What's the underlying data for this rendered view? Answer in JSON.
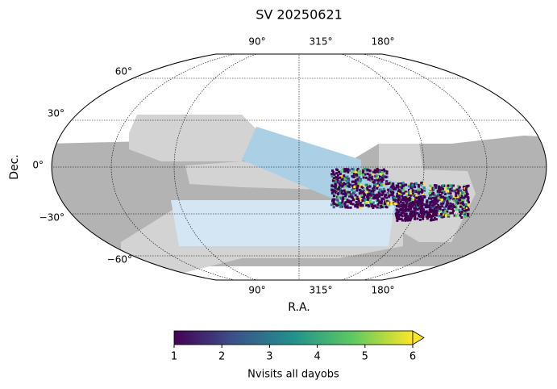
{
  "title": "SV 20250621",
  "map": {
    "xlabel": "R.A.",
    "ylabel": "Dec.",
    "ra_ticks_top": [
      "90°",
      "315°",
      "180°"
    ],
    "ra_ticks_bottom": [
      "90°",
      "315°",
      "180°"
    ],
    "dec_ticks": [
      "60°",
      "30°",
      "0°",
      "−30°",
      "−60°"
    ]
  },
  "colorbar": {
    "label": "Nvisits all dayobs",
    "lim": [
      1,
      6
    ],
    "ticks": [
      1,
      2,
      3,
      4,
      5,
      6
    ],
    "colormap": [
      "#440154",
      "#3b528b",
      "#21918c",
      "#5ec962",
      "#fde725"
    ],
    "extend": "max"
  }
}
